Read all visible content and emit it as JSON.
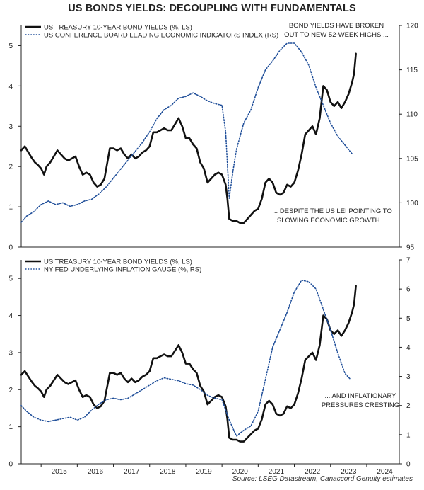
{
  "title": "US BONDS YIELDS: DECOUPLING WITH FUNDAMENTALS",
  "source": "Source: LSEG Datastream, Canaccord Genuity estimates",
  "colors": {
    "yield": "#111111",
    "secondary": "#1f4e99",
    "axis": "#222222"
  },
  "chart_data": [
    {
      "type": "line",
      "panel": "top",
      "x_range": [
        2014.45,
        2024.9
      ],
      "ylim_left": [
        0,
        5.5
      ],
      "ylim_right": [
        95,
        120
      ],
      "left_ticks": [
        0,
        1,
        2,
        3,
        4,
        5
      ],
      "right_ticks": [
        95,
        100,
        105,
        110,
        115,
        120
      ],
      "legend_position": "top-left",
      "annotations": [
        {
          "position": "top-right",
          "lines": [
            "BOND YIELDS HAVE BROKEN",
            "OUT TO NEW 52-WEEK HIGHS ..."
          ]
        },
        {
          "position": "lower-right",
          "lines": [
            "... DESPITE THE US LEI  POINTING TO",
            "SLOWING ECONOMIC GROWTH ..."
          ]
        }
      ],
      "series": [
        {
          "name": "US TREASURY 10-YEAR BOND YIELDS (%, LS)",
          "axis": "left",
          "style": "solid",
          "x": [
            2014.45,
            2014.55,
            2014.65,
            2014.75,
            2014.83,
            2014.9,
            2015.0,
            2015.08,
            2015.15,
            2015.25,
            2015.35,
            2015.45,
            2015.55,
            2015.65,
            2015.75,
            2015.85,
            2015.95,
            2016.05,
            2016.15,
            2016.25,
            2016.35,
            2016.45,
            2016.55,
            2016.65,
            2016.75,
            2016.85,
            2016.9,
            2017.0,
            2017.1,
            2017.2,
            2017.3,
            2017.4,
            2017.5,
            2017.6,
            2017.7,
            2017.8,
            2017.9,
            2018.0,
            2018.1,
            2018.2,
            2018.3,
            2018.4,
            2018.5,
            2018.6,
            2018.7,
            2018.8,
            2018.9,
            2019.0,
            2019.1,
            2019.2,
            2019.3,
            2019.4,
            2019.5,
            2019.6,
            2019.7,
            2019.8,
            2019.9,
            2020.0,
            2020.1,
            2020.15,
            2020.2,
            2020.3,
            2020.4,
            2020.5,
            2020.6,
            2020.7,
            2020.8,
            2020.9,
            2021.0,
            2021.1,
            2021.2,
            2021.3,
            2021.4,
            2021.5,
            2021.6,
            2021.7,
            2021.8,
            2021.9,
            2022.0,
            2022.1,
            2022.2,
            2022.3,
            2022.4,
            2022.5,
            2022.6,
            2022.7,
            2022.8,
            2022.9,
            2023.0,
            2023.1,
            2023.2,
            2023.3,
            2023.4,
            2023.5,
            2023.6,
            2023.65,
            2023.7
          ],
          "y": [
            2.4,
            2.5,
            2.35,
            2.2,
            2.1,
            2.05,
            1.95,
            1.8,
            2.0,
            2.1,
            2.25,
            2.4,
            2.3,
            2.2,
            2.15,
            2.2,
            2.25,
            2.0,
            1.8,
            1.85,
            1.8,
            1.6,
            1.5,
            1.55,
            1.7,
            2.2,
            2.45,
            2.45,
            2.4,
            2.45,
            2.3,
            2.2,
            2.3,
            2.2,
            2.25,
            2.35,
            2.4,
            2.5,
            2.85,
            2.85,
            2.9,
            2.95,
            2.9,
            2.9,
            3.05,
            3.2,
            3.0,
            2.7,
            2.7,
            2.55,
            2.45,
            2.1,
            1.95,
            1.6,
            1.7,
            1.8,
            1.85,
            1.8,
            1.55,
            1.2,
            0.7,
            0.65,
            0.65,
            0.6,
            0.6,
            0.7,
            0.8,
            0.9,
            0.95,
            1.2,
            1.6,
            1.7,
            1.6,
            1.35,
            1.3,
            1.35,
            1.55,
            1.5,
            1.6,
            1.9,
            2.3,
            2.8,
            2.9,
            3.0,
            2.8,
            3.2,
            4.0,
            3.9,
            3.6,
            3.5,
            3.6,
            3.45,
            3.6,
            3.8,
            4.1,
            4.3,
            4.8
          ]
        },
        {
          "name": "US CONFERENCE BOARD LEADING ECONOMIC INDICATORS INDEX (RS)",
          "axis": "right",
          "style": "dotted",
          "x": [
            2014.45,
            2014.6,
            2014.8,
            2015.0,
            2015.2,
            2015.4,
            2015.6,
            2015.8,
            2016.0,
            2016.2,
            2016.4,
            2016.6,
            2016.8,
            2017.0,
            2017.2,
            2017.4,
            2017.6,
            2017.8,
            2018.0,
            2018.2,
            2018.4,
            2018.6,
            2018.8,
            2019.0,
            2019.2,
            2019.4,
            2019.6,
            2019.8,
            2020.0,
            2020.1,
            2020.2,
            2020.3,
            2020.4,
            2020.5,
            2020.6,
            2020.8,
            2021.0,
            2021.2,
            2021.4,
            2021.6,
            2021.8,
            2022.0,
            2022.1,
            2022.2,
            2022.4,
            2022.6,
            2022.8,
            2023.0,
            2023.2,
            2023.4,
            2023.6
          ],
          "y": [
            97.8,
            98.5,
            99.0,
            99.8,
            100.2,
            99.8,
            100.0,
            99.6,
            99.8,
            100.2,
            100.4,
            101.0,
            101.8,
            102.8,
            103.8,
            104.8,
            105.8,
            106.8,
            108.0,
            109.5,
            110.5,
            111.0,
            111.8,
            112.0,
            112.4,
            112.0,
            111.5,
            111.2,
            111.0,
            108.0,
            100.5,
            103.5,
            106.0,
            107.5,
            109.0,
            110.5,
            113.0,
            115.0,
            116.0,
            117.2,
            118.0,
            118.0,
            117.5,
            117.0,
            115.5,
            113.0,
            111.0,
            109.0,
            107.5,
            106.5,
            105.5
          ]
        }
      ]
    },
    {
      "type": "line",
      "panel": "bottom",
      "x_range": [
        2014.45,
        2024.9
      ],
      "ylim_left": [
        0,
        5.5
      ],
      "ylim_right": [
        0,
        7
      ],
      "left_ticks": [
        0,
        1,
        2,
        3,
        4,
        5
      ],
      "right_ticks": [
        0,
        1,
        2,
        3,
        4,
        5,
        6,
        7
      ],
      "x_ticks": [
        "2015",
        "2016",
        "2017",
        "2018",
        "2019",
        "2020",
        "2021",
        "2022",
        "2023",
        "2024"
      ],
      "legend_position": "top-left",
      "annotations": [
        {
          "position": "lower-right",
          "lines": [
            "... AND INFLATIONARY",
            "PRESSURES CRESTING"
          ]
        }
      ],
      "series": [
        {
          "name": "US TREASURY 10-YEAR BOND YIELDS (%, LS)",
          "axis": "left",
          "style": "solid",
          "x": [
            2014.45,
            2014.55,
            2014.65,
            2014.75,
            2014.83,
            2014.9,
            2015.0,
            2015.08,
            2015.15,
            2015.25,
            2015.35,
            2015.45,
            2015.55,
            2015.65,
            2015.75,
            2015.85,
            2015.95,
            2016.05,
            2016.15,
            2016.25,
            2016.35,
            2016.45,
            2016.55,
            2016.65,
            2016.75,
            2016.85,
            2016.9,
            2017.0,
            2017.1,
            2017.2,
            2017.3,
            2017.4,
            2017.5,
            2017.6,
            2017.7,
            2017.8,
            2017.9,
            2018.0,
            2018.1,
            2018.2,
            2018.3,
            2018.4,
            2018.5,
            2018.6,
            2018.7,
            2018.8,
            2018.9,
            2019.0,
            2019.1,
            2019.2,
            2019.3,
            2019.4,
            2019.5,
            2019.6,
            2019.7,
            2019.8,
            2019.9,
            2020.0,
            2020.1,
            2020.15,
            2020.2,
            2020.3,
            2020.4,
            2020.5,
            2020.6,
            2020.7,
            2020.8,
            2020.9,
            2021.0,
            2021.1,
            2021.2,
            2021.3,
            2021.4,
            2021.5,
            2021.6,
            2021.7,
            2021.8,
            2021.9,
            2022.0,
            2022.1,
            2022.2,
            2022.3,
            2022.4,
            2022.5,
            2022.6,
            2022.7,
            2022.8,
            2022.9,
            2023.0,
            2023.1,
            2023.2,
            2023.3,
            2023.4,
            2023.5,
            2023.6,
            2023.65,
            2023.7
          ],
          "y": [
            2.4,
            2.5,
            2.35,
            2.2,
            2.1,
            2.05,
            1.95,
            1.8,
            2.0,
            2.1,
            2.25,
            2.4,
            2.3,
            2.2,
            2.15,
            2.2,
            2.25,
            2.0,
            1.8,
            1.85,
            1.8,
            1.6,
            1.5,
            1.55,
            1.7,
            2.2,
            2.45,
            2.45,
            2.4,
            2.45,
            2.3,
            2.2,
            2.3,
            2.2,
            2.25,
            2.35,
            2.4,
            2.5,
            2.85,
            2.85,
            2.9,
            2.95,
            2.9,
            2.9,
            3.05,
            3.2,
            3.0,
            2.7,
            2.7,
            2.55,
            2.45,
            2.1,
            1.95,
            1.6,
            1.7,
            1.8,
            1.85,
            1.8,
            1.55,
            1.2,
            0.7,
            0.65,
            0.65,
            0.6,
            0.6,
            0.7,
            0.8,
            0.9,
            0.95,
            1.2,
            1.6,
            1.7,
            1.6,
            1.35,
            1.3,
            1.35,
            1.55,
            1.5,
            1.6,
            1.9,
            2.3,
            2.8,
            2.9,
            3.0,
            2.8,
            3.2,
            4.0,
            3.9,
            3.6,
            3.5,
            3.6,
            3.45,
            3.6,
            3.8,
            4.1,
            4.3,
            4.8
          ]
        },
        {
          "name": "NY FED UNDERLYING INFLATION GAUGE (%, RS)",
          "axis": "right",
          "style": "dotted",
          "x": [
            2014.45,
            2014.6,
            2014.8,
            2015.0,
            2015.2,
            2015.4,
            2015.6,
            2015.8,
            2016.0,
            2016.2,
            2016.4,
            2016.6,
            2016.8,
            2017.0,
            2017.2,
            2017.4,
            2017.6,
            2017.8,
            2018.0,
            2018.2,
            2018.4,
            2018.6,
            2018.8,
            2019.0,
            2019.2,
            2019.4,
            2019.6,
            2019.8,
            2020.0,
            2020.2,
            2020.4,
            2020.6,
            2020.8,
            2021.0,
            2021.2,
            2021.4,
            2021.6,
            2021.8,
            2022.0,
            2022.2,
            2022.4,
            2022.6,
            2022.8,
            2023.0,
            2023.2,
            2023.4,
            2023.55
          ],
          "y": [
            2.0,
            1.8,
            1.6,
            1.5,
            1.45,
            1.5,
            1.55,
            1.6,
            1.5,
            1.6,
            1.85,
            2.05,
            2.2,
            2.25,
            2.2,
            2.25,
            2.4,
            2.55,
            2.7,
            2.85,
            2.95,
            2.9,
            2.85,
            2.75,
            2.7,
            2.55,
            2.35,
            2.25,
            2.2,
            1.5,
            0.95,
            1.15,
            1.3,
            1.8,
            2.9,
            4.0,
            4.6,
            5.2,
            5.9,
            6.3,
            6.25,
            6.0,
            5.3,
            4.6,
            3.8,
            3.1,
            2.9
          ]
        }
      ]
    }
  ]
}
